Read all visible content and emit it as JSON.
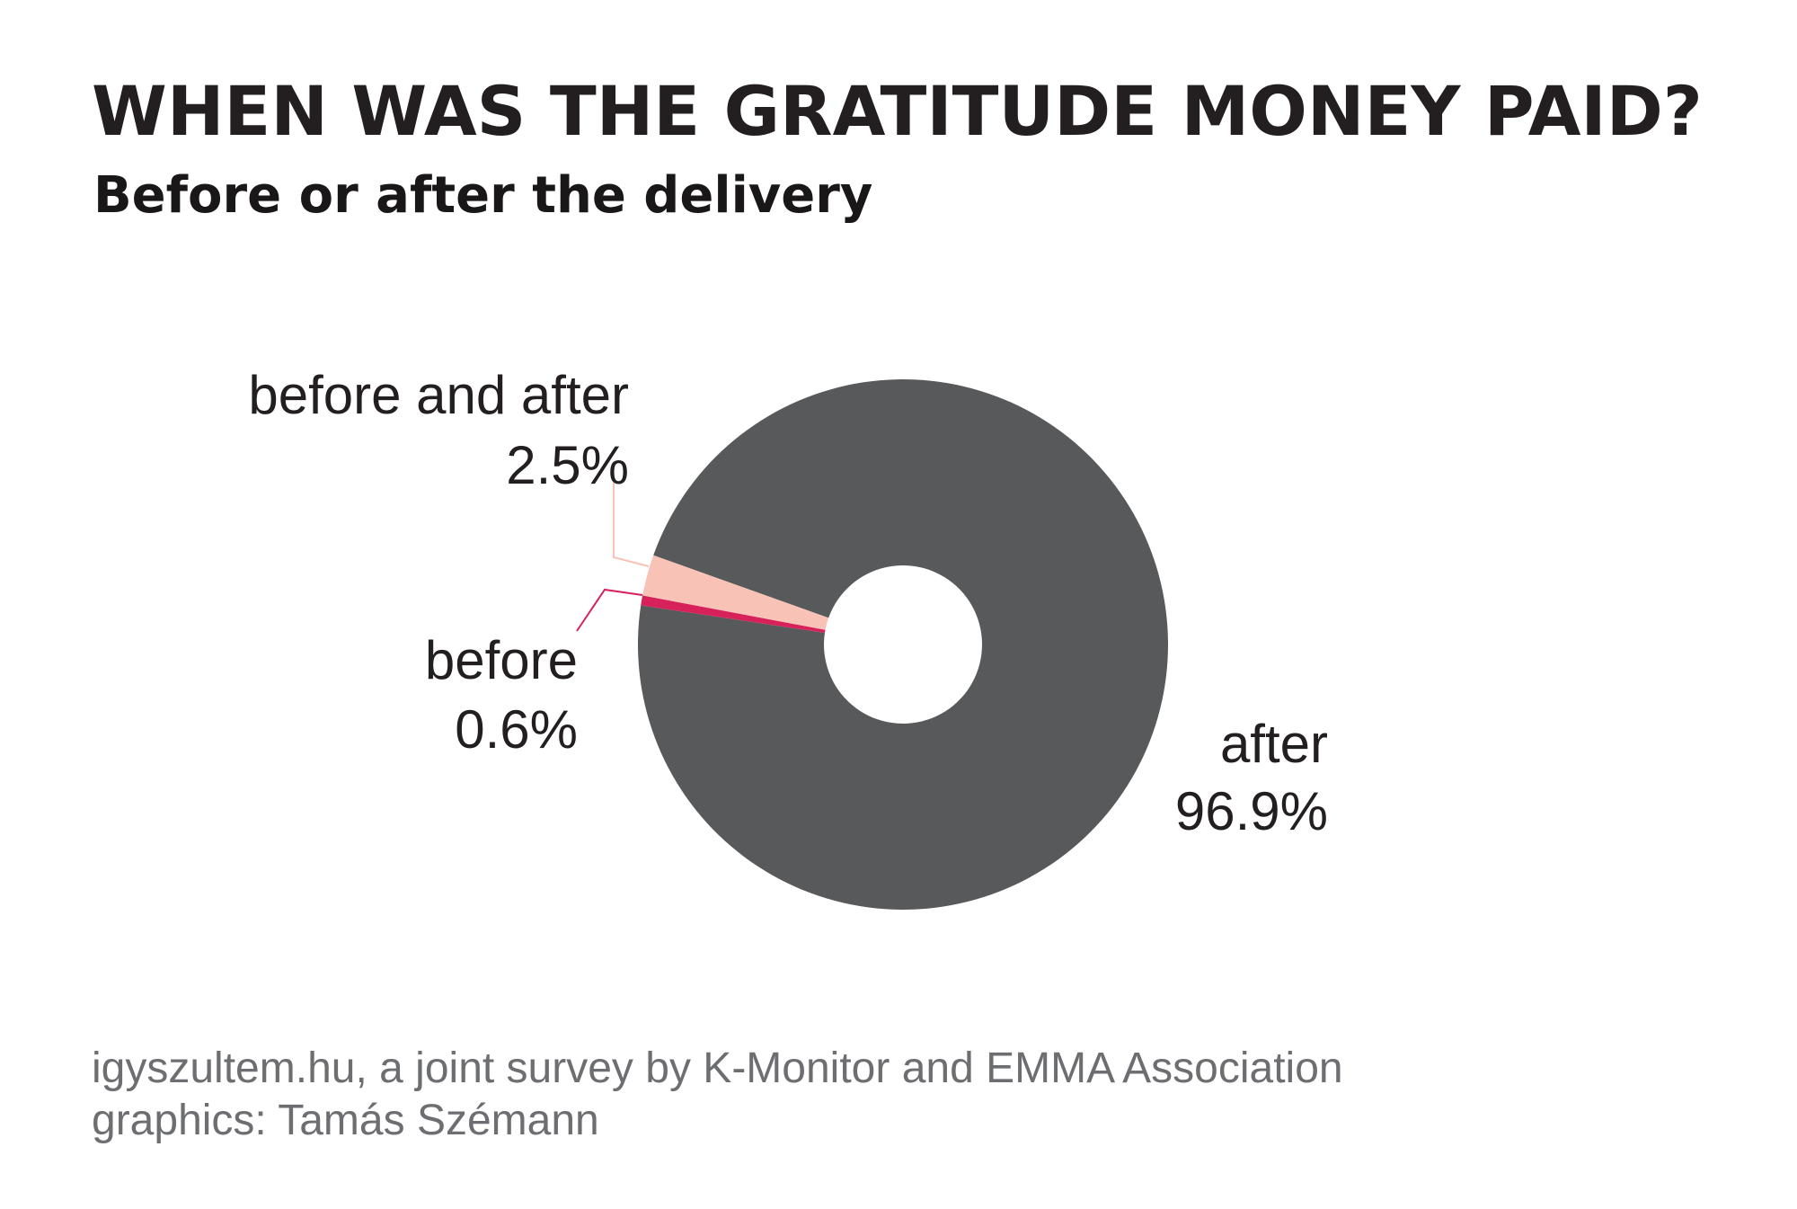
{
  "header": {
    "title": "WHEN WAS THE GRATITUDE MONEY PAID?",
    "subtitle": "Before or after the delivery"
  },
  "chart_data": {
    "type": "pie",
    "donut": true,
    "start_at_top": false,
    "slices": [
      {
        "name": "after",
        "value": 96.9,
        "label": "96.9%",
        "color": "#58595b"
      },
      {
        "name": "before",
        "value": 0.6,
        "label": "0.6%",
        "color": "#d6215a"
      },
      {
        "name": "before and after",
        "value": 2.5,
        "label": "2.5%",
        "color": "#f9c2b6"
      }
    ]
  },
  "footer": {
    "source_line1": "igyszultem.hu, a joint survey by K-Monitor and EMMA Association",
    "source_line2": "graphics: Tamás Szémann"
  }
}
